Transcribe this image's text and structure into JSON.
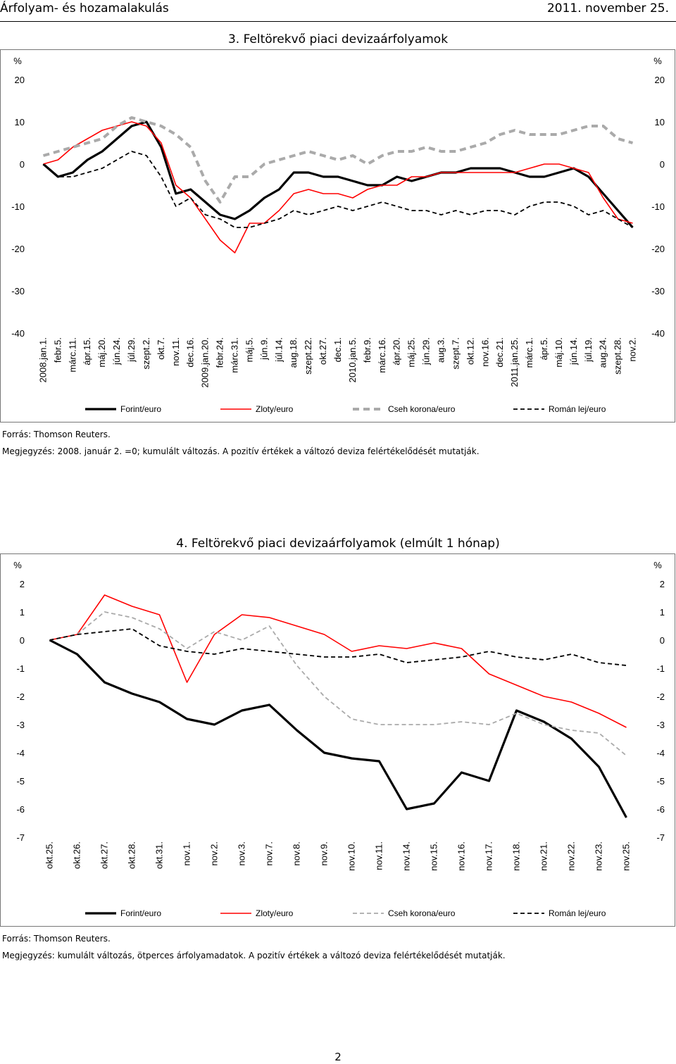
{
  "header": {
    "left": "Árfolyam- és hozamalakulás",
    "right": "2011. november 25."
  },
  "page_number": "2",
  "chart_data": [
    {
      "type": "line",
      "title": "3. Feltörekvő piaci devizaárfolyamok",
      "ylabel_left": "%",
      "ylabel_right": "%",
      "ylim": [
        -40,
        20
      ],
      "yticks": [
        20,
        10,
        0,
        -10,
        -20,
        -30,
        -40
      ],
      "categories": [
        "2008.jan.1.",
        "febr.5.",
        "márc.11.",
        "ápr.15.",
        "máj.20.",
        "jún.24.",
        "júl.29.",
        "szept.2.",
        "okt.7.",
        "nov.11.",
        "dec.16.",
        "2009.jan.20.",
        "febr.24.",
        "márc.31.",
        "máj.5.",
        "jún.9.",
        "júl.14.",
        "aug.18.",
        "szept.22.",
        "okt.27.",
        "dec.1.",
        "2010.jan.5.",
        "febr.9.",
        "márc.16.",
        "ápr.20.",
        "máj.25.",
        "jún.29.",
        "aug.3.",
        "szept.7.",
        "okt.12.",
        "nov.16.",
        "dec.21.",
        "2011.jan.25.",
        "márc.1.",
        "ápr.5.",
        "máj.10.",
        "jún.14.",
        "júl.19.",
        "aug.24.",
        "szept.28.",
        "nov.2."
      ],
      "series": [
        {
          "name": "Forint/euro",
          "color": "#000000",
          "style": "solid-thick",
          "values": [
            0,
            -3,
            -2,
            1,
            3,
            6,
            9,
            10,
            4,
            -7,
            -6,
            -9,
            -12,
            -13,
            -11,
            -8,
            -6,
            -2,
            -2,
            -3,
            -3,
            -4,
            -5,
            -5,
            -3,
            -4,
            -3,
            -2,
            -2,
            -1,
            -1,
            -1,
            -2,
            -3,
            -3,
            -2,
            -1,
            -3,
            -7,
            -11,
            -15
          ]
        },
        {
          "name": "Zloty/euro",
          "color": "#ff0000",
          "style": "solid",
          "values": [
            0,
            1,
            4,
            6,
            8,
            9,
            10,
            9,
            5,
            -5,
            -8,
            -13,
            -18,
            -21,
            -14,
            -14,
            -11,
            -7,
            -6,
            -7,
            -7,
            -8,
            -6,
            -5,
            -5,
            -3,
            -3,
            -2,
            -2,
            -2,
            -2,
            -2,
            -2,
            -1,
            0,
            0,
            -1,
            -2,
            -8,
            -13,
            -14
          ]
        },
        {
          "name": "Cseh korona/euro",
          "color": "#aaaaaa",
          "style": "dashed-thick",
          "values": [
            2,
            3,
            4,
            5,
            6,
            9,
            11,
            10,
            9,
            7,
            4,
            -4,
            -9,
            -3,
            -3,
            0,
            1,
            2,
            3,
            2,
            1,
            2,
            0,
            2,
            3,
            3,
            4,
            3,
            3,
            4,
            5,
            7,
            8,
            7,
            7,
            7,
            8,
            9,
            9,
            6,
            5
          ]
        },
        {
          "name": "Román lej/euro",
          "color": "#000000",
          "style": "dashed",
          "values": [
            0,
            -3,
            -3,
            -2,
            -1,
            1,
            3,
            2,
            -3,
            -10,
            -8,
            -12,
            -13,
            -15,
            -15,
            -14,
            -13,
            -11,
            -12,
            -11,
            -10,
            -11,
            -10,
            -9,
            -10,
            -11,
            -11,
            -12,
            -11,
            -12,
            -11,
            -11,
            -12,
            -10,
            -9,
            -9,
            -10,
            -12,
            -11,
            -13,
            -15
          ]
        }
      ],
      "legend": [
        "Forint/euro",
        "Zloty/euro",
        "Cseh korona/euro",
        "Román lej/euro"
      ],
      "source": "Forrás: Thomson Reuters.",
      "note": "Megjegyzés: 2008. január 2. =0; kumulált változás. A pozitív értékek a változó deviza felértékelődését mutatják."
    },
    {
      "type": "line",
      "title": "4. Feltörekvő piaci devizaárfolyamok (elmúlt 1 hónap)",
      "ylabel_left": "%",
      "ylabel_right": "%",
      "ylim": [
        -7,
        2
      ],
      "yticks": [
        2,
        1,
        0,
        -1,
        -2,
        -3,
        -4,
        -5,
        -6,
        -7
      ],
      "categories": [
        "okt.25.",
        "okt.26.",
        "okt.27.",
        "okt.28.",
        "okt.31.",
        "nov.1.",
        "nov.2.",
        "nov.3.",
        "nov.7.",
        "nov.8.",
        "nov.9.",
        "nov.10.",
        "nov.11.",
        "nov.14.",
        "nov.15.",
        "nov.16.",
        "nov.17.",
        "nov.18.",
        "nov.21.",
        "nov.22.",
        "nov.23.",
        "nov.25."
      ],
      "series": [
        {
          "name": "Forint/euro",
          "color": "#000000",
          "style": "solid-thick",
          "values": [
            0,
            -0.5,
            -1.5,
            -1.9,
            -2.2,
            -2.8,
            -3.0,
            -2.5,
            -2.3,
            -3.2,
            -4.0,
            -4.2,
            -4.3,
            -6.0,
            -5.8,
            -4.7,
            -5.0,
            -2.5,
            -2.9,
            -3.5,
            -4.5,
            -6.3
          ]
        },
        {
          "name": "Zloty/euro",
          "color": "#ff0000",
          "style": "solid",
          "values": [
            0,
            0.2,
            1.6,
            1.2,
            0.9,
            -1.5,
            0.2,
            0.9,
            0.8,
            0.5,
            0.2,
            -0.4,
            -0.2,
            -0.3,
            -0.1,
            -0.3,
            -1.2,
            -1.6,
            -2.0,
            -2.2,
            -2.6,
            -3.1
          ]
        },
        {
          "name": "Cseh korona/euro",
          "color": "#aaaaaa",
          "style": "dashed",
          "values": [
            0,
            0.2,
            1.0,
            0.8,
            0.4,
            -0.3,
            0.3,
            0.0,
            0.5,
            -0.9,
            -2.0,
            -2.8,
            -3.0,
            -3.0,
            -3.0,
            -2.9,
            -3.0,
            -2.6,
            -3.0,
            -3.2,
            -3.3,
            -4.1
          ]
        },
        {
          "name": "Román lej/euro",
          "color": "#000000",
          "style": "dashed",
          "values": [
            0,
            0.2,
            0.3,
            0.4,
            -0.2,
            -0.4,
            -0.5,
            -0.3,
            -0.4,
            -0.5,
            -0.6,
            -0.6,
            -0.5,
            -0.8,
            -0.7,
            -0.6,
            -0.4,
            -0.6,
            -0.7,
            -0.5,
            -0.8,
            -0.9
          ]
        }
      ],
      "legend": [
        "Forint/euro",
        "Zloty/euro",
        "Cseh korona/euro",
        "Román lej/euro"
      ],
      "source": "Forrás: Thomson Reuters.",
      "note": "Megjegyzés: kumulált változás, ötperces árfolyamadatok. A pozitív értékek a változó deviza felértékelődését mutatják."
    }
  ]
}
